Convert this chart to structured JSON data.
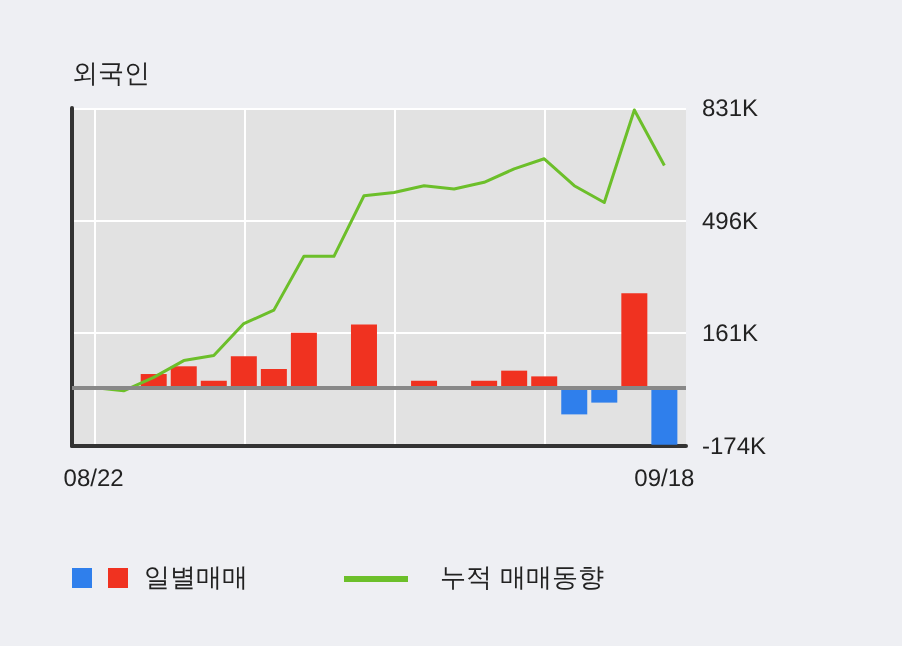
{
  "chart_data": {
    "type": "bar",
    "title": "외국인",
    "categories": [
      "08/22",
      null,
      null,
      null,
      null,
      null,
      null,
      null,
      null,
      null,
      null,
      null,
      null,
      null,
      null,
      null,
      null,
      null,
      null,
      "09/18"
    ],
    "series": [
      {
        "name": "일별매매",
        "colors": [
          "#f03220",
          "#f03220",
          "#f03220",
          "#f03220",
          "#f03220",
          "#f03220",
          "#f03220",
          "#f03220",
          "#f03220",
          "#f03220",
          "#f03220",
          "#f03220",
          "#f03220",
          "#f03220",
          "#f03220",
          "#f03220",
          "#2f7fec",
          "#2f7fec",
          "#f03220",
          "#2f7fec"
        ],
        "values": [
          null,
          null,
          40000,
          63000,
          20000,
          93000,
          55000,
          163000,
          null,
          187000,
          null,
          20000,
          null,
          20000,
          50000,
          33000,
          -80000,
          -45000,
          280000,
          -170000
        ]
      },
      {
        "name": "누적 매매동향",
        "type": "line",
        "color": "#6cbf2a",
        "values": [
          0,
          -10000,
          30000,
          80000,
          95000,
          190000,
          230000,
          390000,
          390000,
          570000,
          580000,
          600000,
          590000,
          610000,
          650000,
          680000,
          600000,
          550000,
          825000,
          660000
        ]
      }
    ],
    "ylim": [
      -174000,
      831000
    ],
    "yticks": [
      {
        "value": 831000,
        "label": "831K"
      },
      {
        "value": 496000,
        "label": "496K"
      },
      {
        "value": 161000,
        "label": "161K"
      },
      {
        "value": -174000,
        "label": "-174K"
      }
    ],
    "ref_lines": [
      {
        "axis": "y",
        "value": 0,
        "color": "#888888"
      }
    ],
    "grid": true,
    "legend": "bottom left",
    "marker": "none"
  }
}
